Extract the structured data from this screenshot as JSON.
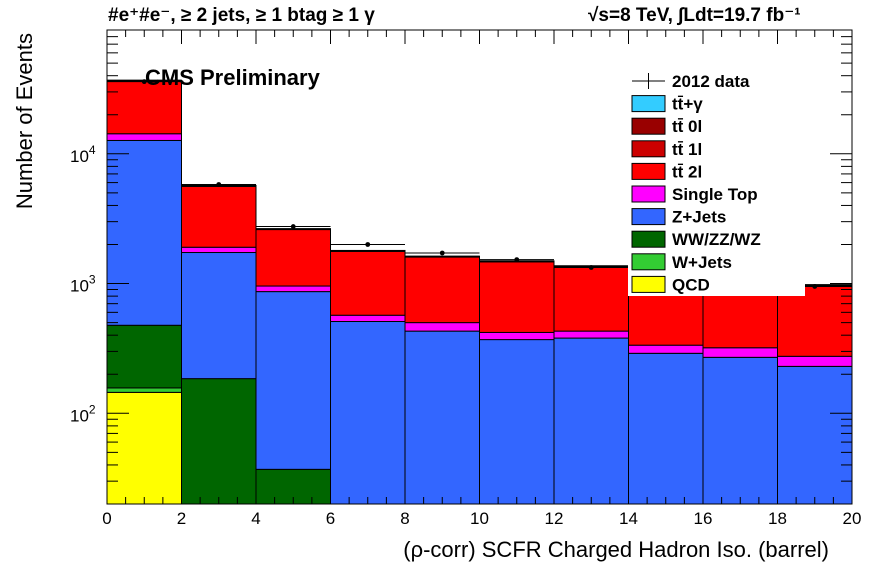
{
  "header": {
    "left_title": "#e⁺#e⁻, ≥ 2 jets, ≥ 1 btag ≥ 1 γ",
    "right_title": "√s=8 TeV,  ∫Ldt=19.7 fb⁻¹"
  },
  "label": "CMS Preliminary",
  "chart_data": {
    "type": "bar",
    "stacked": true,
    "log_y": true,
    "xlabel": "(ρ-corr) SCFR Charged Hadron Iso. (barrel)",
    "ylabel": "Number of Events",
    "xlim": [
      0,
      20
    ],
    "ylim": [
      20,
      90000
    ],
    "bin_edges": [
      0,
      2,
      4,
      6,
      8,
      10,
      12,
      14,
      16,
      18,
      20
    ],
    "x_ticks": [
      "0",
      "2",
      "4",
      "6",
      "8",
      "10",
      "12",
      "14",
      "16",
      "18",
      "20"
    ],
    "y_ticks": [
      {
        "base": "10",
        "exp": "2",
        "value": 100
      },
      {
        "base": "10",
        "exp": "3",
        "value": 1000
      },
      {
        "base": "10",
        "exp": "4",
        "value": 10000
      }
    ],
    "series": [
      {
        "name": "QCD",
        "color": "#ffff00",
        "values": [
          145,
          0,
          0,
          0,
          0,
          0,
          0,
          0,
          0,
          0
        ]
      },
      {
        "name": "W+Jets",
        "color": "#33cc33",
        "values": [
          12,
          0,
          0,
          0,
          0,
          0,
          0,
          0,
          0,
          0
        ]
      },
      {
        "name": "WW/ZZ/WZ",
        "color": "#006600",
        "values": [
          320,
          185,
          37,
          0,
          0,
          0,
          0,
          0,
          0,
          0
        ]
      },
      {
        "name": "Z+Jets",
        "color": "#3366ff",
        "values": [
          12200,
          1550,
          830,
          510,
          430,
          370,
          380,
          290,
          270,
          230
        ]
      },
      {
        "name": "Single Top",
        "color": "#ff00ff",
        "values": [
          1600,
          170,
          90,
          60,
          70,
          50,
          50,
          45,
          50,
          45
        ]
      },
      {
        "name": "tt̄ 2l",
        "color": "#ff0000",
        "values": [
          22000,
          3700,
          1650,
          1200,
          1100,
          1050,
          920,
          950,
          970,
          690
        ]
      },
      {
        "name": "tt̄ 1l",
        "color": "#cc0000",
        "values": [
          600,
          100,
          40,
          30,
          25,
          25,
          20,
          20,
          15,
          15
        ]
      },
      {
        "name": "tt̄ 0l",
        "color": "#990000",
        "values": [
          0,
          0,
          0,
          0,
          0,
          0,
          0,
          0,
          0,
          0
        ]
      },
      {
        "name": "tt̄+γ",
        "color": "#33ccff",
        "values": [
          0,
          0,
          0,
          0,
          0,
          0,
          0,
          0,
          0,
          0
        ]
      }
    ],
    "data": {
      "name": "2012 data",
      "x": [
        1,
        3,
        5,
        7,
        9,
        11,
        13,
        15,
        17,
        19
      ],
      "y": [
        36000,
        5800,
        2750,
        2000,
        1720,
        1530,
        1330,
        1330,
        1330,
        950
      ]
    },
    "legend": {
      "placement": "top-right",
      "entries": [
        {
          "name": "2012 data",
          "marker": "data"
        },
        {
          "name": "tt̄+γ",
          "color": "#33ccff"
        },
        {
          "name": "tt̄ 0l",
          "color": "#990000"
        },
        {
          "name": "tt̄ 1l",
          "color": "#cc0000"
        },
        {
          "name": "tt̄ 2l",
          "color": "#ff0000"
        },
        {
          "name": "Single Top",
          "color": "#ff00ff"
        },
        {
          "name": "Z+Jets",
          "color": "#3366ff"
        },
        {
          "name": "WW/ZZ/WZ",
          "color": "#006600"
        },
        {
          "name": "W+Jets",
          "color": "#33cc33"
        },
        {
          "name": "QCD",
          "color": "#ffff00"
        }
      ]
    }
  }
}
